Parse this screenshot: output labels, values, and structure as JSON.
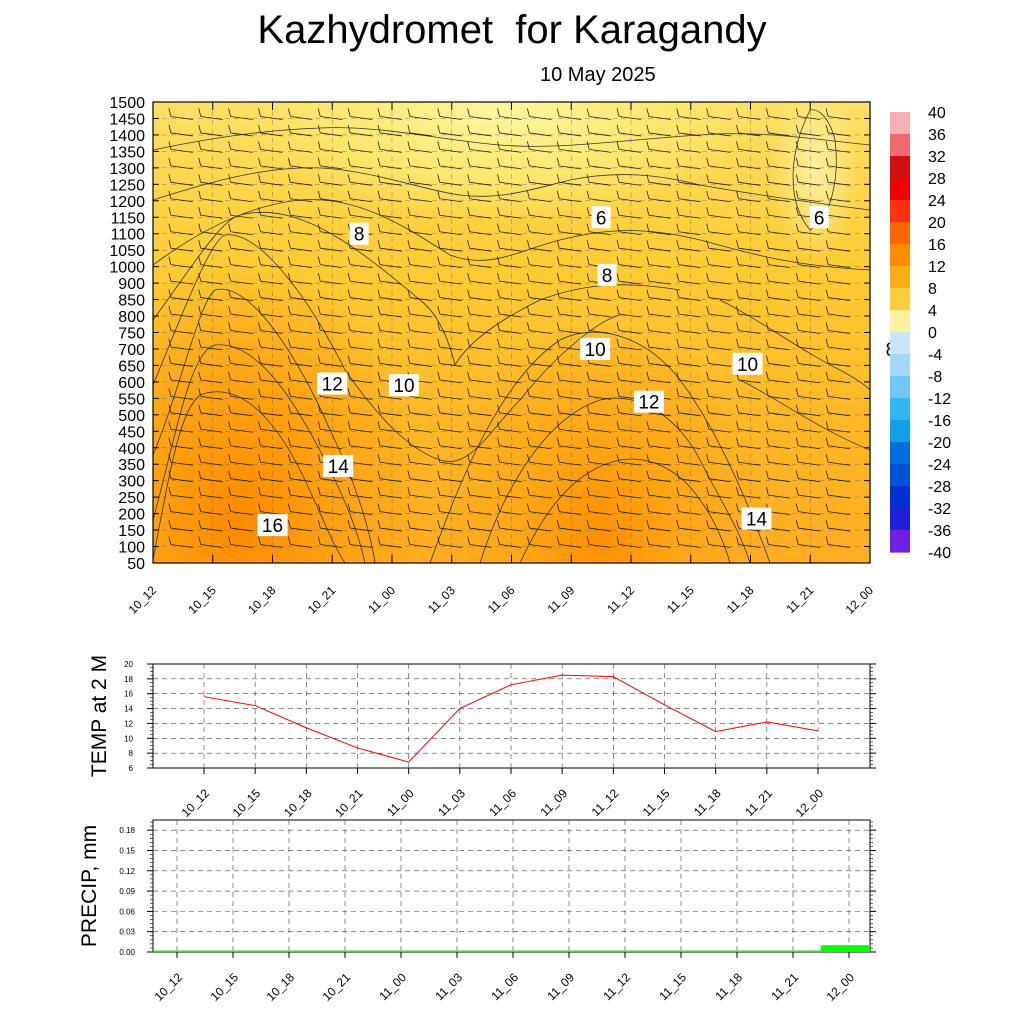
{
  "page": {
    "title": "Kazhydromet  for Karagandy",
    "subtitle": "10 May 2025"
  },
  "chart_data": [
    {
      "type": "heatmap",
      "description_ref": "cross-section",
      "time_labels": [
        "10_12",
        "10_15",
        "10_18",
        "10_21",
        "11_00",
        "11_03",
        "11_06",
        "11_09",
        "11_12",
        "11_15",
        "11_18",
        "11_21",
        "12_00"
      ],
      "y_labels": [
        "50",
        "100",
        "150",
        "200",
        "250",
        "300",
        "350",
        "400",
        "450",
        "500",
        "550",
        "600",
        "650",
        "700",
        "750",
        "800",
        "850",
        "900",
        "1000",
        "1050",
        "1100",
        "1150",
        "1200",
        "1250",
        "1300",
        "1350",
        "1400",
        "1450",
        "1500"
      ],
      "colorbar_labels": [
        "40",
        "36",
        "32",
        "28",
        "24",
        "20",
        "16",
        "12",
        "8",
        "4",
        "0",
        "-4",
        "-8",
        "-12",
        "-16",
        "-20",
        "-24",
        "-28",
        "-32",
        "-36",
        "-40"
      ],
      "contour_labels": [
        {
          "text": "8",
          "t": 3.45,
          "y": 1100
        },
        {
          "text": "6",
          "t": 7.5,
          "y": 1150
        },
        {
          "text": "6",
          "t": 11.15,
          "y": 1150
        },
        {
          "text": "8",
          "t": 7.6,
          "y": 950
        },
        {
          "text": "10",
          "t": 7.4,
          "y": 700
        },
        {
          "text": "8",
          "t": 12.35,
          "y": 700
        },
        {
          "text": "10",
          "t": 9.95,
          "y": 655
        },
        {
          "text": "12",
          "t": 3.0,
          "y": 595
        },
        {
          "text": "10",
          "t": 4.2,
          "y": 590
        },
        {
          "text": "12",
          "t": 8.3,
          "y": 540
        },
        {
          "text": "14",
          "t": 3.1,
          "y": 345
        },
        {
          "text": "14",
          "t": 10.1,
          "y": 185
        },
        {
          "text": "16",
          "t": 2.0,
          "y": 165
        }
      ],
      "colors": {
        "warmest": "#ff8c00",
        "warm": "#ffb22a",
        "mild": "#ffd040",
        "cool": "#fff8a0"
      }
    },
    {
      "type": "line",
      "ylabel": "TEMP at 2 M",
      "x": [
        "10_12",
        "10_15",
        "10_18",
        "10_21",
        "11_00",
        "11_03",
        "11_06",
        "11_09",
        "11_12",
        "11_15",
        "11_18",
        "11_21",
        "12_00"
      ],
      "values": [
        15.6,
        14.4,
        11.4,
        8.7,
        6.8,
        14.0,
        17.2,
        18.5,
        18.3,
        14.5,
        10.9,
        12.2,
        11.0
      ],
      "y_ticks": [
        "6",
        "8",
        "10",
        "12",
        "14",
        "16",
        "18",
        "20"
      ],
      "ylim": [
        6,
        20
      ],
      "grid": true,
      "color": "#ff0000"
    },
    {
      "type": "bar",
      "ylabel": "PRECIP, mm",
      "x": [
        "10_12",
        "10_15",
        "10_18",
        "10_21",
        "11_00",
        "11_03",
        "11_06",
        "11_09",
        "11_12",
        "11_15",
        "11_18",
        "11_21",
        "12_00"
      ],
      "values": [
        0,
        0,
        0,
        0,
        0,
        0,
        0,
        0,
        0,
        0,
        0,
        0,
        0.01
      ],
      "y_ticks": [
        "0.00",
        "0.03",
        "0.06",
        "0.09",
        "0.12",
        "0.15",
        "0.18"
      ],
      "ylim": [
        0,
        0.195
      ],
      "grid": true,
      "color": "#00ff00"
    }
  ]
}
